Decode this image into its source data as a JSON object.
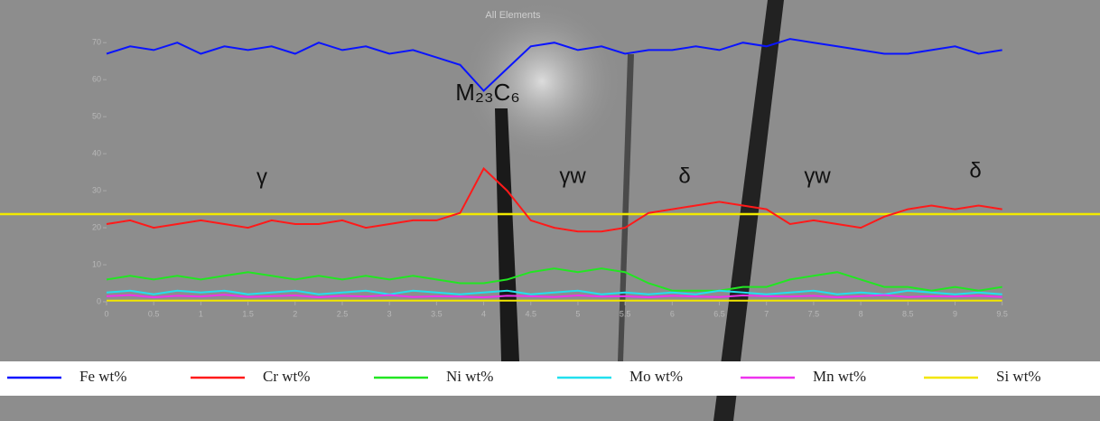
{
  "chart_data": {
    "type": "line",
    "title": "All Elements",
    "x": [
      0,
      0.25,
      0.5,
      0.75,
      1,
      1.25,
      1.5,
      1.75,
      2,
      2.25,
      2.5,
      2.75,
      3,
      3.25,
      3.5,
      3.75,
      4,
      4.25,
      4.5,
      4.75,
      5,
      5.25,
      5.5,
      5.75,
      6,
      6.25,
      6.5,
      6.75,
      7,
      7.25,
      7.5,
      7.75,
      8,
      8.25,
      8.5,
      8.75,
      9,
      9.25,
      9.5
    ],
    "series": [
      {
        "name": "Fe wt%",
        "color": "#0a14ff",
        "values": [
          67,
          69,
          68,
          70,
          67,
          69,
          68,
          69,
          67,
          70,
          68,
          69,
          67,
          68,
          66,
          64,
          57,
          63,
          69,
          70,
          68,
          69,
          67,
          68,
          68,
          69,
          68,
          70,
          69,
          71,
          70,
          69,
          68,
          67,
          67,
          68,
          69,
          67,
          68
        ]
      },
      {
        "name": "Cr wt%",
        "color": "#ff1a1a",
        "values": [
          21,
          22,
          20,
          21,
          22,
          21,
          20,
          22,
          21,
          21,
          22,
          20,
          21,
          22,
          22,
          24,
          36,
          30,
          22,
          20,
          19,
          19,
          20,
          24,
          25,
          26,
          27,
          26,
          25,
          21,
          22,
          21,
          20,
          23,
          25,
          26,
          25,
          26,
          25
        ]
      },
      {
        "name": "Ni wt%",
        "color": "#22e622",
        "values": [
          6,
          7,
          6,
          7,
          6,
          7,
          8,
          7,
          6,
          7,
          6,
          7,
          6,
          7,
          6,
          5,
          5,
          6,
          8,
          9,
          8,
          9,
          8,
          5,
          3,
          3,
          3,
          4,
          4,
          6,
          7,
          8,
          6,
          4,
          4,
          3,
          4,
          3,
          4
        ]
      },
      {
        "name": "Mo wt%",
        "color": "#22e0ee",
        "values": [
          2.5,
          3,
          2,
          3,
          2.5,
          3,
          2,
          2.5,
          3,
          2,
          2.5,
          3,
          2,
          3,
          2.5,
          2,
          2.5,
          3,
          2,
          2.5,
          3,
          2,
          2.5,
          2,
          2.5,
          2,
          3,
          2.5,
          2,
          2.5,
          3,
          2,
          2.5,
          2,
          3,
          2.5,
          2,
          2.5,
          2
        ]
      },
      {
        "name": "Mn wt%",
        "color": "#ee33ee",
        "values": [
          1.5,
          1.8,
          1.2,
          1.6,
          1.4,
          1.9,
          1.3,
          1.5,
          1.7,
          1.2,
          1.6,
          1.4,
          1.8,
          1.3,
          1.5,
          1.4,
          1.2,
          1.6,
          1.5,
          1.3,
          1.7,
          1.4,
          1.5,
          1.2,
          1.6,
          1.4,
          1.3,
          1.7,
          1.5,
          1.4,
          1.6,
          1.2,
          1.5,
          1.8,
          1.3,
          1.5,
          1.4,
          1.6,
          1.3
        ]
      },
      {
        "name": "Si wt%",
        "color": "#f2e600",
        "values": [
          0.3,
          0.3,
          0.3,
          0.3,
          0.3,
          0.3,
          0.3,
          0.3,
          0.3,
          0.3,
          0.3,
          0.3,
          0.3,
          0.3,
          0.3,
          0.3,
          0.3,
          0.3,
          0.3,
          0.3,
          0.3,
          0.3,
          0.3,
          0.3,
          0.3,
          0.3,
          0.3,
          0.3,
          0.3,
          0.3,
          0.3,
          0.3,
          0.3,
          0.3,
          0.3,
          0.3,
          0.3,
          0.3,
          0.3
        ]
      }
    ],
    "annotations": [
      "γ",
      "M₂₃C₆",
      "γw",
      "δ",
      "γw",
      "δ"
    ],
    "xlim": [
      0,
      9.8
    ],
    "xticks": [
      0,
      0.5,
      1,
      1.5,
      2,
      2.5,
      3,
      3.5,
      4,
      4.5,
      5,
      5.5,
      6,
      6.5,
      7,
      7.5,
      8,
      8.5,
      9,
      9.5
    ],
    "ylim": [
      0,
      72
    ],
    "yticks": [
      0,
      10,
      20,
      30,
      40,
      50,
      60,
      70
    ]
  }
}
